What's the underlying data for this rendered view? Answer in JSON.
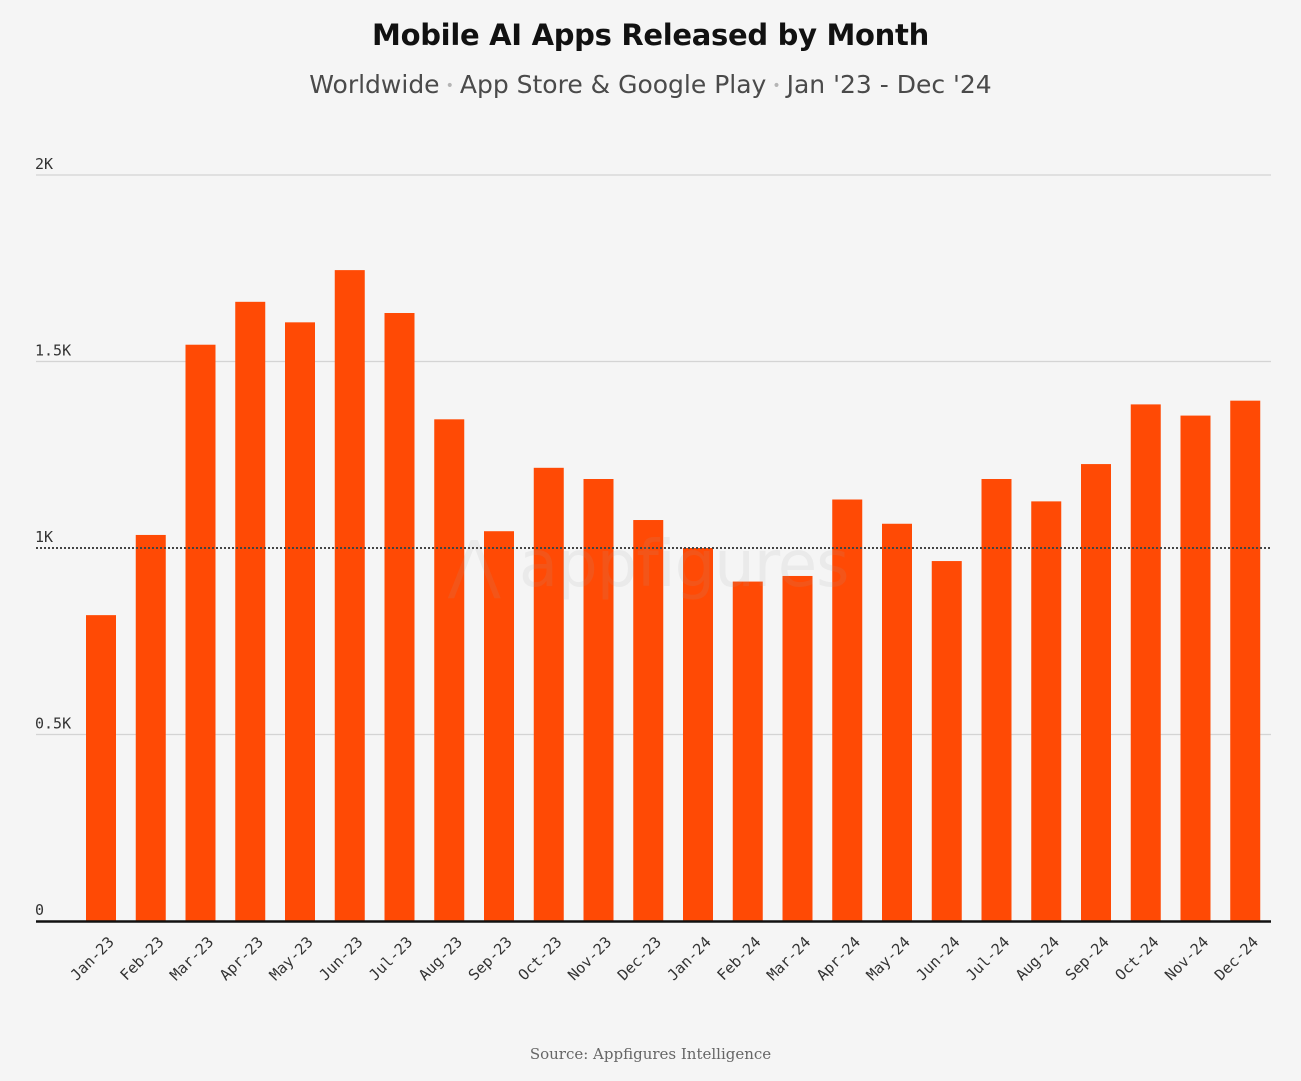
{
  "title": "Mobile AI Apps Released by Month",
  "subtitle": {
    "part1": "Worldwide",
    "part2": "App Store & Google Play",
    "part3": "Jan '23 - Dec '24",
    "separator": "•"
  },
  "watermark": "appfigures",
  "source": "Source: Appfigures Intelligence",
  "colors": {
    "bar": "#ff4a05",
    "grid": "#d4d4d4",
    "reference_line": "#444444",
    "baseline": "#111111",
    "background": "#f5f5f5"
  },
  "chart_data": {
    "type": "bar",
    "title": "Mobile AI Apps Released by Month",
    "subtitle": "Worldwide • App Store & Google Play • Jan '23 - Dec '24",
    "xlabel": "",
    "ylabel": "",
    "ylim": [
      0,
      2000
    ],
    "yticks": [
      0,
      500,
      1000,
      1500,
      2000
    ],
    "ytick_labels": [
      "0",
      "0.5K",
      "1K",
      "1.5K",
      "2K"
    ],
    "reference_line": 1000,
    "grid": "horizontal",
    "categories": [
      "Jan-23",
      "Feb-23",
      "Mar-23",
      "Apr-23",
      "May-23",
      "Jun-23",
      "Jul-23",
      "Aug-23",
      "Sep-23",
      "Oct-23",
      "Nov-23",
      "Dec-23",
      "Jan-24",
      "Feb-24",
      "Mar-24",
      "Apr-24",
      "May-24",
      "Jun-24",
      "Jul-24",
      "Aug-24",
      "Sep-24",
      "Oct-24",
      "Nov-24",
      "Dec-24"
    ],
    "values": [
      820,
      1035,
      1545,
      1660,
      1605,
      1745,
      1630,
      1345,
      1045,
      1215,
      1185,
      1075,
      1000,
      910,
      925,
      1130,
      1065,
      965,
      1185,
      1125,
      1225,
      1385,
      1355,
      1395
    ]
  }
}
